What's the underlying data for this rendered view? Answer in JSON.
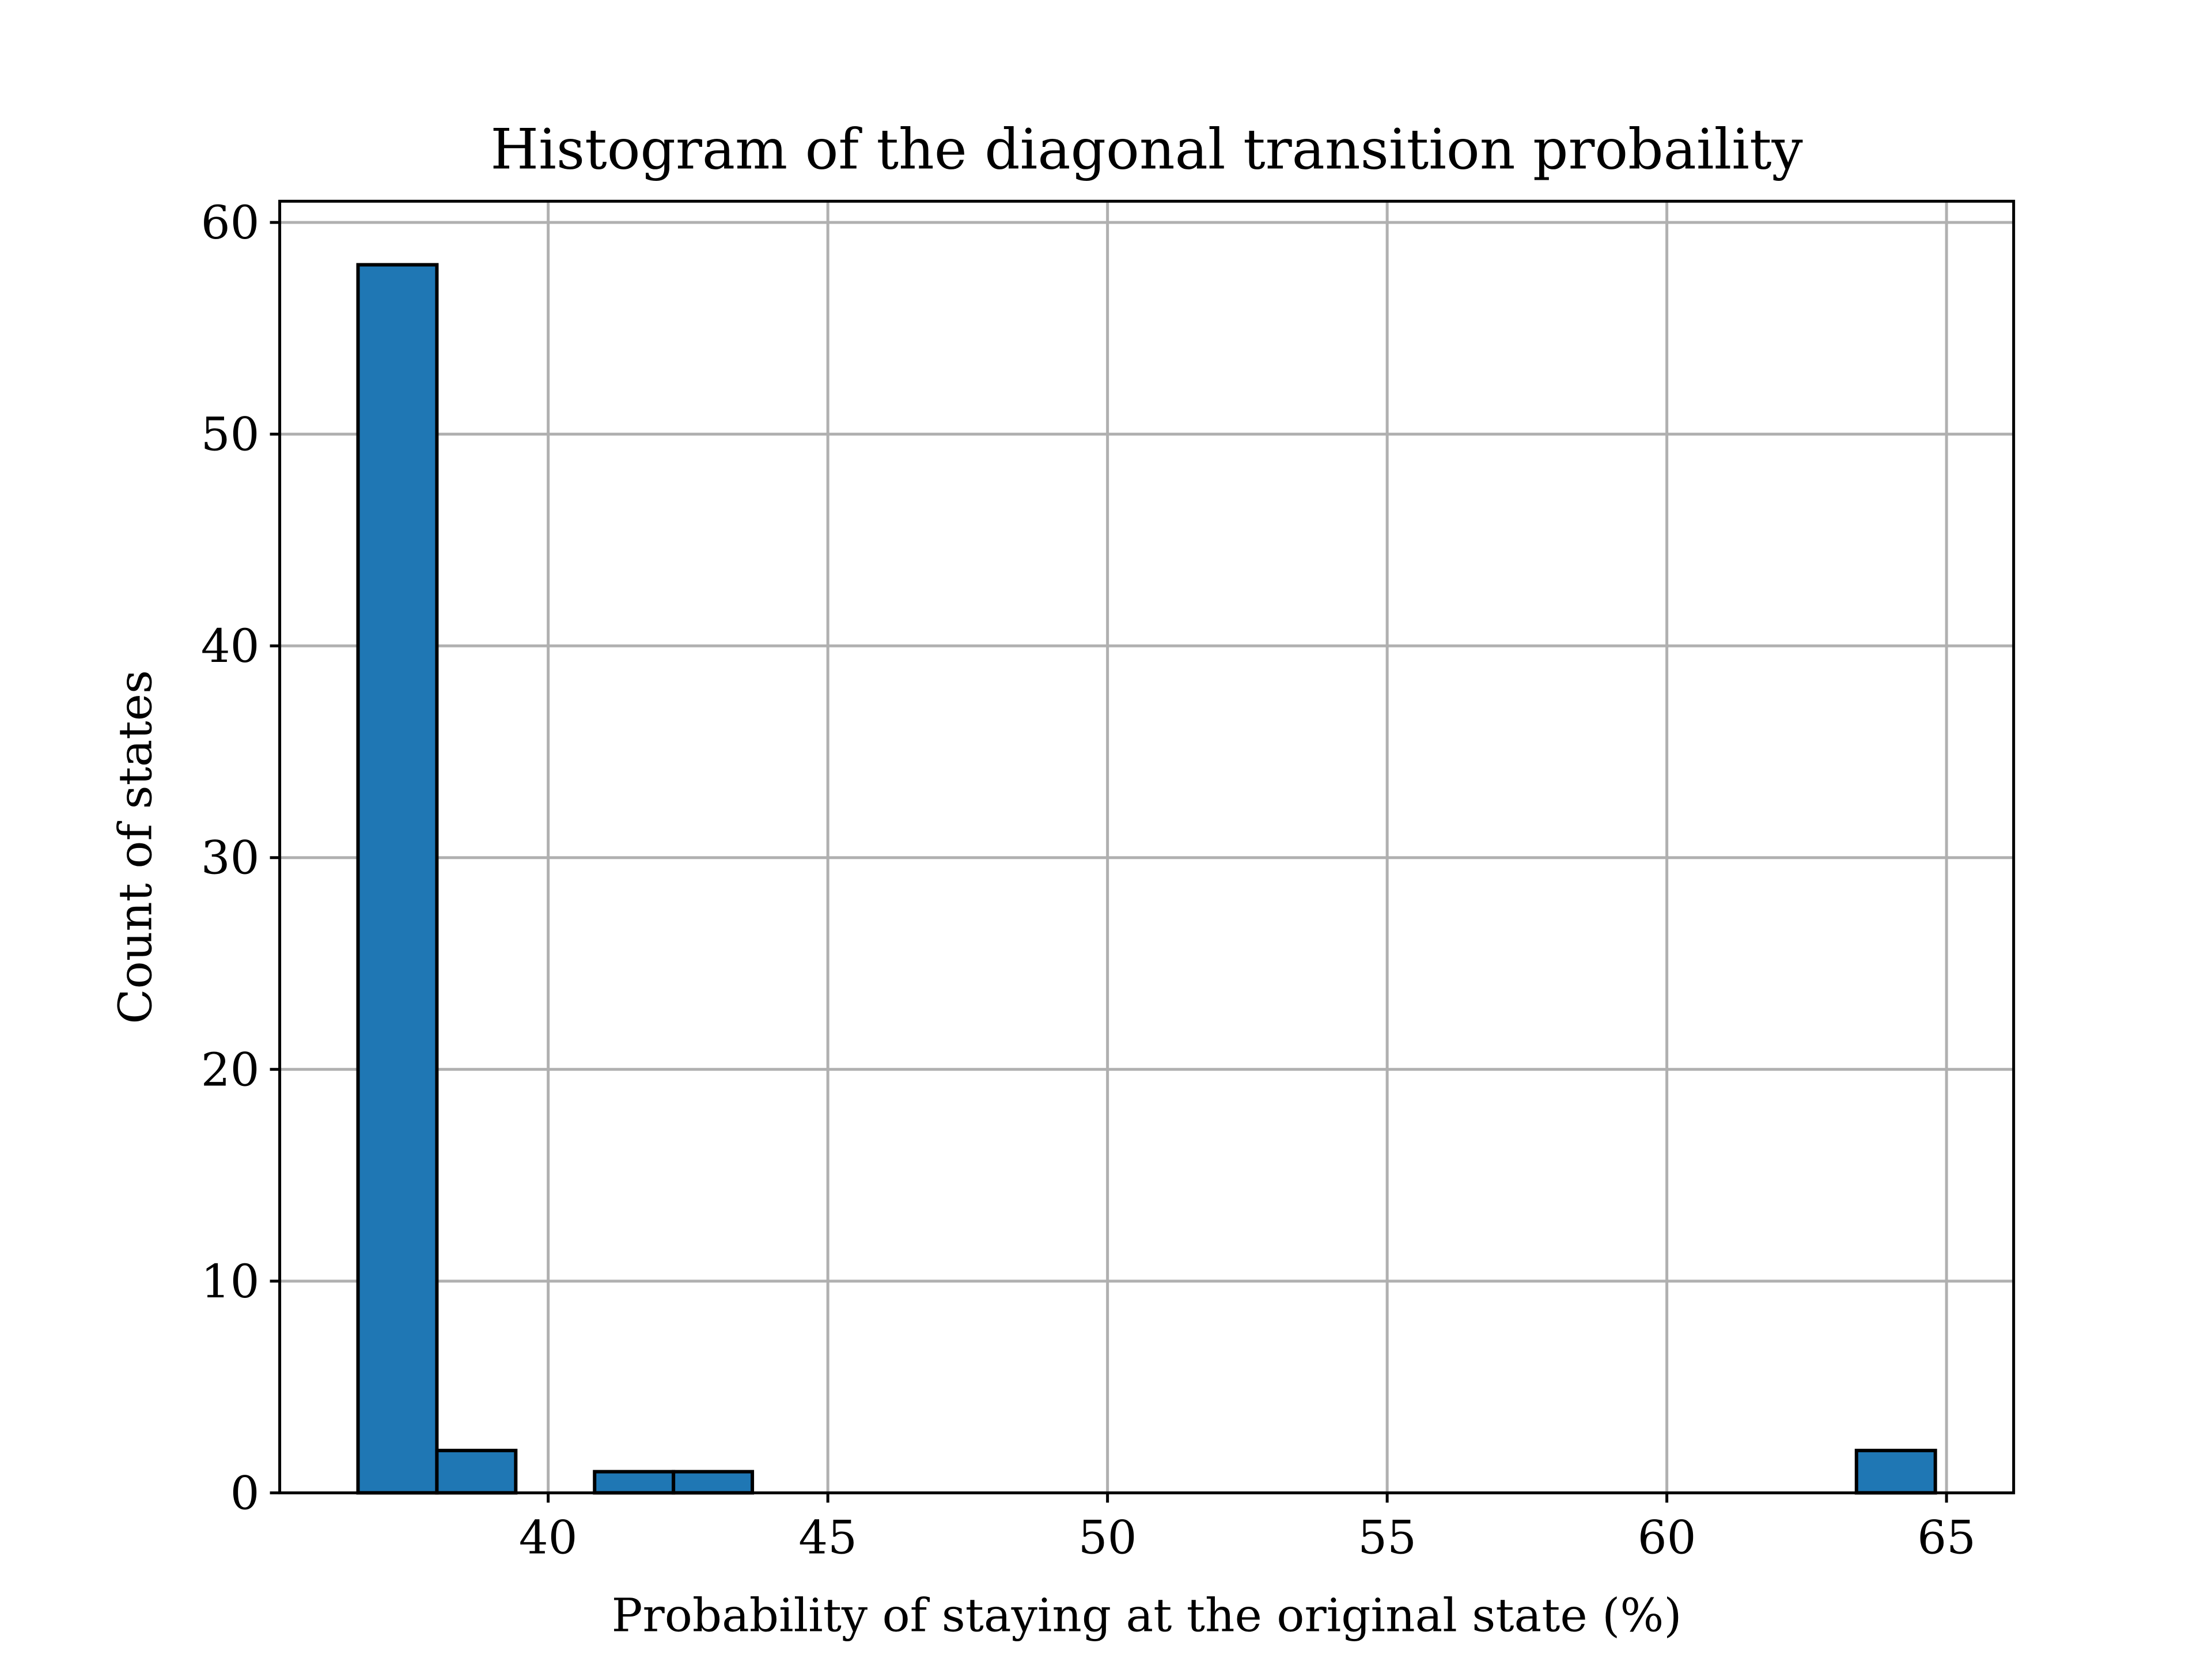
{
  "chart_data": {
    "type": "bar",
    "title": "Histogram of the diagonal transition probaility",
    "xlabel": "Probability of staying at the original state (%)",
    "ylabel": "Count of states",
    "xlim": [
      35.2,
      66.2
    ],
    "ylim": [
      0,
      61
    ],
    "xticks": [
      40,
      45,
      50,
      55,
      60,
      65
    ],
    "yticks": [
      0,
      10,
      20,
      30,
      40,
      50,
      60
    ],
    "grid": true,
    "bin_edges": [
      36.6,
      38.01,
      39.42,
      40.83,
      42.24,
      43.65,
      45.06,
      46.47,
      47.88,
      49.29,
      50.7,
      52.11,
      53.52,
      54.93,
      56.34,
      57.75,
      59.16,
      60.57,
      61.98,
      63.39,
      64.8
    ],
    "values": [
      58,
      2,
      0,
      1,
      1,
      0,
      0,
      0,
      0,
      0,
      0,
      0,
      0,
      0,
      0,
      0,
      0,
      0,
      0,
      2
    ],
    "colors": {
      "bar": "#1f77b4",
      "edge": "#000000",
      "grid": "#b0b0b0"
    }
  }
}
